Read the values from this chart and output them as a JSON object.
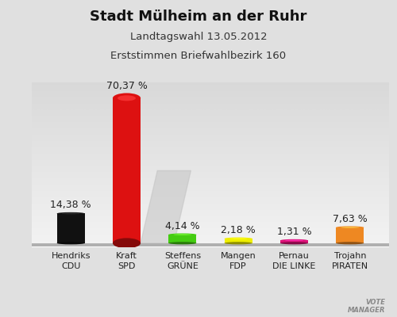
{
  "title": "Stadt Mülheim an der Ruhr",
  "subtitle1": "Landtagswahl 13.05.2012",
  "subtitle2": "Erststimmen Briefwahlbezirk 160",
  "categories": [
    "Hendriks\nCDU",
    "Kraft\nSPD",
    "Steffens\nGRÜNE",
    "Mangen\nFDP",
    "Pernau\nDIE LINKE",
    "Trojahn\nPIRATEN"
  ],
  "values": [
    14.38,
    70.37,
    4.14,
    2.18,
    1.31,
    7.63
  ],
  "labels": [
    "14,38 %",
    "70,37 %",
    "4,14 %",
    "2,18 %",
    "1,31 %",
    "7,63 %"
  ],
  "bar_colors": [
    "#111111",
    "#dd1111",
    "#44cc11",
    "#eeee00",
    "#dd1177",
    "#ee8822"
  ],
  "background_top": "#e8e8e8",
  "background_bottom": "#f8f8f8",
  "bar_width": 0.5,
  "ylim": [
    0,
    78
  ],
  "n_bars": 6
}
